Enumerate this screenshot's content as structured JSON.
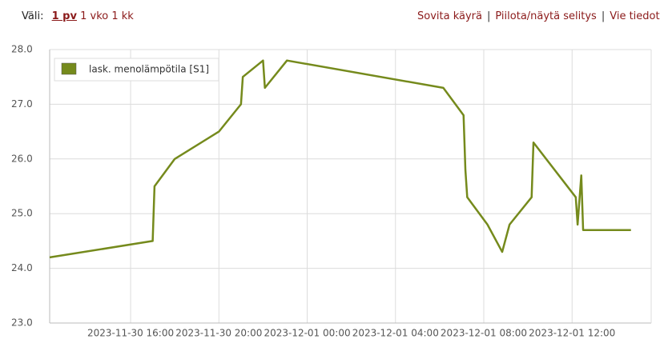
{
  "toolbar": {
    "range_label": "Väli:",
    "ranges": [
      "1 pv",
      "1 vko",
      "1 kk"
    ],
    "links": [
      "Sovita käyrä",
      "Piilota/näytä selitys",
      "Vie tiedot"
    ]
  },
  "chart_data": {
    "type": "line",
    "x": [
      "2023-11-30 12:20",
      "2023-11-30 17:00",
      "2023-11-30 17:05",
      "2023-11-30 18:00",
      "2023-11-30 20:00",
      "2023-11-30 21:00",
      "2023-11-30 21:05",
      "2023-11-30 22:00",
      "2023-11-30 22:05",
      "2023-11-30 23:05",
      "2023-12-01 06:10",
      "2023-12-01 07:05",
      "2023-12-01 07:10",
      "2023-12-01 07:15",
      "2023-12-01 08:10",
      "2023-12-01 08:50",
      "2023-12-01 09:10",
      "2023-12-01 10:10",
      "2023-12-01 10:15",
      "2023-12-01 12:10",
      "2023-12-01 12:15",
      "2023-12-01 12:25",
      "2023-12-01 12:30",
      "2023-12-01 14:40"
    ],
    "series": [
      {
        "name": "lask. menolämpötila [S1]",
        "color": "#758a1c",
        "values": [
          24.2,
          24.5,
          25.5,
          26.0,
          26.5,
          27.0,
          27.5,
          27.8,
          27.3,
          27.8,
          27.3,
          26.8,
          25.8,
          25.3,
          24.8,
          24.3,
          24.8,
          25.3,
          26.3,
          25.3,
          24.8,
          25.7,
          24.7,
          24.7
        ]
      }
    ],
    "xlim": [
      "2023-11-30 12:20",
      "2023-12-01 15:35"
    ],
    "xticks": [
      "2023-11-30 16:00",
      "2023-11-30 20:00",
      "2023-12-01 00:00",
      "2023-12-01 04:00",
      "2023-12-01 08:00",
      "2023-12-01 12:00"
    ],
    "ylim": [
      23,
      28
    ],
    "yticks": [
      {
        "value": 23,
        "label": "23.0"
      },
      {
        "value": 24,
        "label": "24.0"
      },
      {
        "value": 25,
        "label": "25.0"
      },
      {
        "value": 26,
        "label": "26.0"
      },
      {
        "value": 27,
        "label": "27.0"
      },
      {
        "value": 28,
        "label": "28.0"
      }
    ],
    "grid": true,
    "legend": "top-left"
  }
}
